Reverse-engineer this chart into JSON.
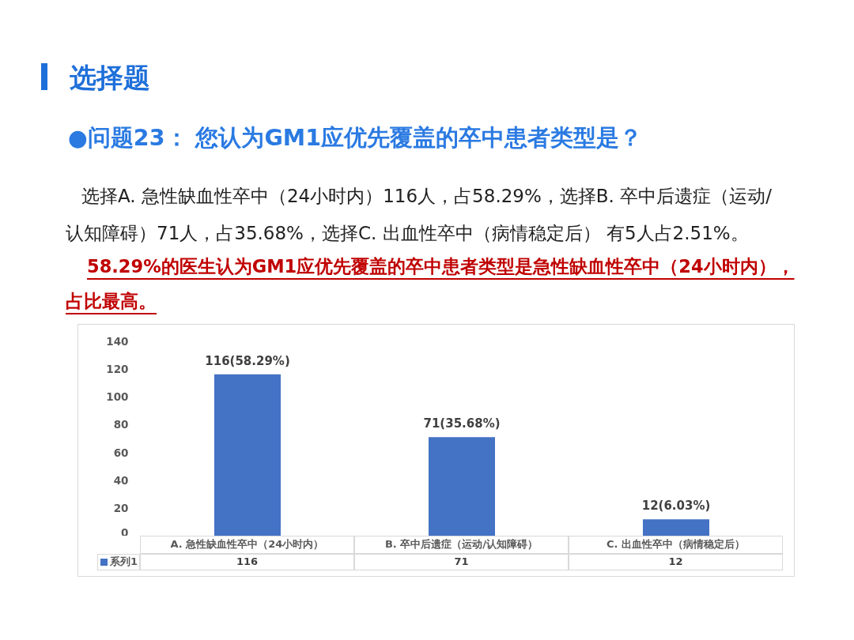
{
  "chart_data": {
    "type": "bar",
    "title": "选择题",
    "subtitle": "●问题23： 您认为GM1应优先覆盖的卒中患者类型是？",
    "annotations": [
      "选择A. 急性缺血性卒中（24小时内）116人，占58.29%，选择B. 卒中后遗症（运动/认知障碍）71人，占35.68%，选择C. 出血性卒中（病情稳定后） 有5人占2.51%。",
      "58.29%的医生认为GM1应优先覆盖的卒中患者类型是急性缺血性卒中（24小时内），占比最高。",
      {
        "text": "116(58.29%)",
        "x": "A. 急性缺血性卒中（24小时内）",
        "y": 116
      },
      {
        "text": "71(35.68%)",
        "x": "B. 卒中后遗症（运动/认知障碍）",
        "y": 71
      },
      {
        "text": "12(6.03%)",
        "x": "C. 出血性卒中（病情稳定后）",
        "y": 12
      }
    ],
    "categories": [
      "A. 急性缺血性卒中（24小时内）",
      "B. 卒中后遗症（运动/认知障碍）",
      "C. 出血性卒中（病情稳定后）"
    ],
    "series": [
      {
        "name": "系列1",
        "color": "#4472c4",
        "values": [
          116,
          71,
          12
        ]
      }
    ],
    "ylim": [
      0,
      140
    ],
    "yticks": [
      0,
      20,
      40,
      60,
      80,
      100,
      120,
      140
    ],
    "grid": false,
    "legend": "bottom",
    "data_labels": true
  }
}
